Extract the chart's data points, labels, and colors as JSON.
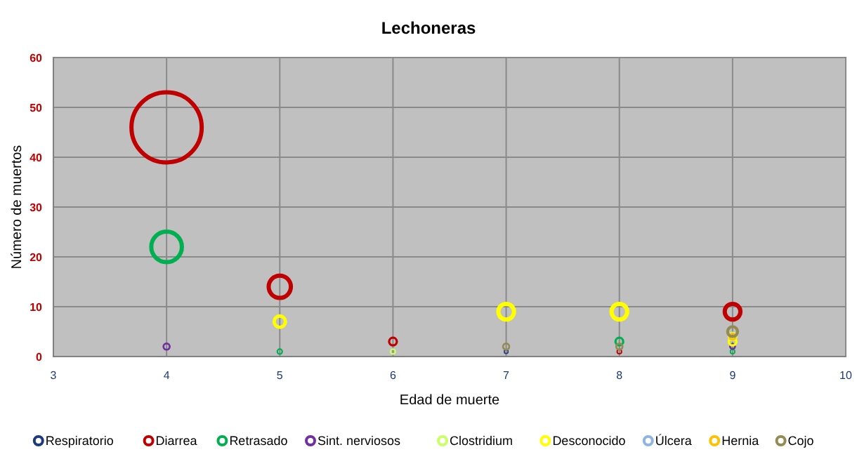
{
  "chart_data": {
    "type": "bubble",
    "title": "Lechoneras",
    "xlabel": "Edad de muerte",
    "ylabel": "Número de muertos",
    "xlim": [
      3,
      10
    ],
    "xticks": [
      3,
      4,
      5,
      6,
      7,
      8,
      9,
      10
    ],
    "ylim": [
      0,
      60
    ],
    "yticks": [
      0,
      10,
      20,
      30,
      40,
      50,
      60
    ],
    "grid": true,
    "legend": "bottom",
    "series": [
      {
        "name": "Respiratorio",
        "color": "#1f3a7a",
        "x": [
          7,
          9
        ],
        "values": [
          1,
          2
        ],
        "sizes": [
          0.003,
          0.005
        ]
      },
      {
        "name": "Diarrea",
        "color": "#c00000",
        "x": [
          4,
          5,
          6,
          8,
          9
        ],
        "values": [
          46,
          14,
          3,
          1,
          9
        ],
        "sizes": [
          1,
          0.1,
          0.012,
          0.004,
          0.05
        ]
      },
      {
        "name": "Retrasado",
        "color": "#00b050",
        "x": [
          4,
          5,
          8,
          9
        ],
        "values": [
          22,
          1,
          3,
          1
        ],
        "sizes": [
          0.19,
          0.005,
          0.012,
          0.004
        ]
      },
      {
        "name": "Sint. nerviosos",
        "color": "#7030a0",
        "x": [
          4,
          9
        ],
        "values": [
          2,
          2
        ],
        "sizes": [
          0.008,
          0.005
        ]
      },
      {
        "name": "Clostridium",
        "color": "#ccff66",
        "x": [
          6,
          9
        ],
        "values": [
          1,
          4
        ],
        "sizes": [
          0.005,
          0.012
        ]
      },
      {
        "name": "Desconocido",
        "color": "#ffff00",
        "x": [
          5,
          7,
          8,
          9
        ],
        "values": [
          7,
          9,
          9,
          3
        ],
        "sizes": [
          0.026,
          0.05,
          0.05,
          0.012
        ]
      },
      {
        "name": "Úlcera",
        "color": "#8eb4e3"
      },
      {
        "name": "Hernia",
        "color": "#ffc000",
        "x": [
          9
        ],
        "values": [
          4
        ],
        "sizes": [
          0.008
        ]
      },
      {
        "name": "Cojo",
        "color": "#948a54",
        "x": [
          7,
          8,
          9
        ],
        "values": [
          2,
          2,
          5
        ],
        "sizes": [
          0.008,
          0.008,
          0.02
        ]
      }
    ]
  }
}
